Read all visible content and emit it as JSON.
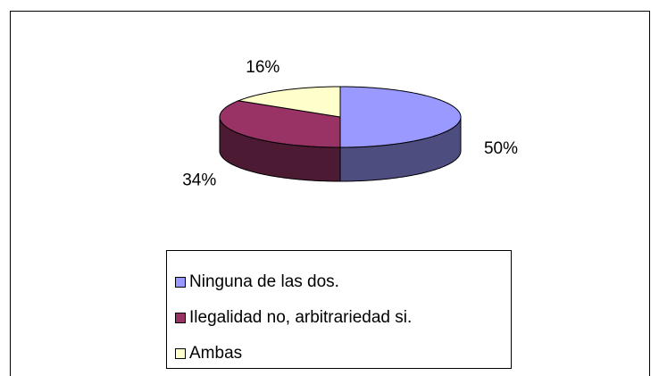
{
  "chart_data": {
    "type": "pie",
    "three_d": true,
    "categories": [
      "Ninguna de las dos.",
      "Ilegalidad no, arbitrariedad si.",
      "Ambas"
    ],
    "values": [
      50,
      34,
      16
    ],
    "value_labels": [
      "50%",
      "34%",
      "16%"
    ],
    "colors": [
      "#9999ff",
      "#993366",
      "#ffffcc"
    ],
    "legend": "bottom"
  }
}
